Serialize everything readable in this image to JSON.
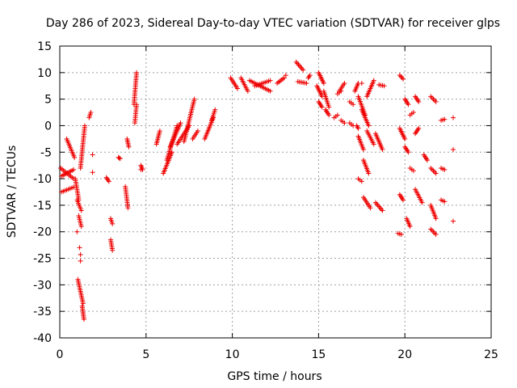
{
  "chart_data": {
    "type": "scatter",
    "title": "Day 286 of 2023, Sidereal Day-to-day VTEC variation (SDTVAR) for receiver glps",
    "xlabel": "GPS time / hours",
    "ylabel": "SDTVAR / TECUs",
    "xlim": [
      0,
      25
    ],
    "ylim": [
      -40,
      15
    ],
    "xticks": [
      "0",
      "5",
      "10",
      "15",
      "20",
      "25"
    ],
    "yticks": [
      "15",
      "10",
      "5",
      "0",
      "-5",
      "-10",
      "-15",
      "-20",
      "-25",
      "-30",
      "-35",
      "-40"
    ],
    "grid": true,
    "marker": "+",
    "color": "#ee0000",
    "series": [
      {
        "name": "SDTVAR",
        "segments": [
          {
            "x": [
              0.05,
              0.8
            ],
            "y": [
              -8.0,
              -10.0
            ]
          },
          {
            "x": [
              0.1,
              0.8
            ],
            "y": [
              -9.5,
              -8.3
            ]
          },
          {
            "x": [
              0.1,
              0.8
            ],
            "y": [
              -12.5,
              -11.6
            ]
          },
          {
            "x": [
              0.4,
              0.85
            ],
            "y": [
              -2.5,
              -6.0
            ]
          },
          {
            "x": [
              0.9,
              1.1
            ],
            "y": [
              -10.0,
              -14.0
            ]
          },
          {
            "x": [
              1.0,
              1.25
            ],
            "y": [
              -14.0,
              -16.0
            ]
          },
          {
            "x": [
              1.05,
              1.35
            ],
            "y": [
              -29.0,
              -33.5
            ]
          },
          {
            "x": [
              1.3,
              1.4
            ],
            "y": [
              -34.0,
              -36.5
            ]
          },
          {
            "x": [
              1.2,
              1.45
            ],
            "y": [
              -8.0,
              0.0
            ]
          },
          {
            "x": [
              1.1,
              1.25
            ],
            "y": [
              -17.0,
              -19.0
            ]
          },
          {
            "x": [
              1.7,
              1.8
            ],
            "y": [
              1.5,
              2.5
            ]
          },
          {
            "x": [
              2.7,
              2.85
            ],
            "y": [
              -9.8,
              -10.5
            ]
          },
          {
            "x": [
              2.95,
              3.05
            ],
            "y": [
              -17.5,
              -18.5
            ]
          },
          {
            "x": [
              2.95,
              3.05
            ],
            "y": [
              -21.5,
              -23.5
            ]
          },
          {
            "x": [
              3.4,
              3.5
            ],
            "y": [
              -6.0,
              -6.2
            ]
          },
          {
            "x": [
              3.8,
              3.95
            ],
            "y": [
              -11.5,
              -15.5
            ]
          },
          {
            "x": [
              3.9,
              4.0
            ],
            "y": [
              -2.5,
              -4.0
            ]
          },
          {
            "x": [
              4.3,
              4.45
            ],
            "y": [
              4.0,
              10.0
            ]
          },
          {
            "x": [
              4.35,
              4.45
            ],
            "y": [
              0.5,
              4.0
            ]
          },
          {
            "x": [
              4.7,
              4.8
            ],
            "y": [
              -7.5,
              -8.3
            ]
          },
          {
            "x": [
              5.6,
              5.8
            ],
            "y": [
              -3.5,
              -1.0
            ]
          },
          {
            "x": [
              6.0,
              6.5
            ],
            "y": [
              -9.0,
              -5.0
            ]
          },
          {
            "x": [
              6.2,
              6.8
            ],
            "y": [
              -6.5,
              0.0
            ]
          },
          {
            "x": [
              6.4,
              7.0
            ],
            "y": [
              -4.0,
              0.5
            ]
          },
          {
            "x": [
              6.8,
              7.5
            ],
            "y": [
              -3.5,
              0.0
            ]
          },
          {
            "x": [
              7.2,
              7.8
            ],
            "y": [
              -3.0,
              5.0
            ]
          },
          {
            "x": [
              7.7,
              8.0
            ],
            "y": [
              -2.5,
              -1.0
            ]
          },
          {
            "x": [
              8.4,
              8.9
            ],
            "y": [
              -2.5,
              1.5
            ]
          },
          {
            "x": [
              8.8,
              9.0
            ],
            "y": [
              1.0,
              3.0
            ]
          },
          {
            "x": [
              9.9,
              10.3
            ],
            "y": [
              9.0,
              7.0
            ]
          },
          {
            "x": [
              10.5,
              10.9
            ],
            "y": [
              9.0,
              6.5
            ]
          },
          {
            "x": [
              11.0,
              12.2
            ],
            "y": [
              8.5,
              6.5
            ]
          },
          {
            "x": [
              11.3,
              12.2
            ],
            "y": [
              7.5,
              8.5
            ]
          },
          {
            "x": [
              12.6,
              13.0
            ],
            "y": [
              8.0,
              9.0
            ]
          },
          {
            "x": [
              13.7,
              14.1
            ],
            "y": [
              12.0,
              10.5
            ]
          },
          {
            "x": [
              13.8,
              14.3
            ],
            "y": [
              8.3,
              8.0
            ]
          },
          {
            "x": [
              14.4,
              14.5
            ],
            "y": [
              9.0,
              9.5
            ]
          },
          {
            "x": [
              15.0,
              15.3
            ],
            "y": [
              10.0,
              8.0
            ]
          },
          {
            "x": [
              14.9,
              15.2
            ],
            "y": [
              7.5,
              5.5
            ]
          },
          {
            "x": [
              15.0,
              15.2
            ],
            "y": [
              4.5,
              3.5
            ]
          },
          {
            "x": [
              15.3,
              15.6
            ],
            "y": [
              6.5,
              3.5
            ]
          },
          {
            "x": [
              15.4,
              15.6
            ],
            "y": [
              3.0,
              2.0
            ]
          },
          {
            "x": [
              15.9,
              16.1
            ],
            "y": [
              1.5,
              2.0
            ]
          },
          {
            "x": [
              16.1,
              16.3
            ],
            "y": [
              6.0,
              6.5
            ]
          },
          {
            "x": [
              16.2,
              16.5
            ],
            "y": [
              6.5,
              8.0
            ]
          },
          {
            "x": [
              16.3,
              16.5
            ],
            "y": [
              1.0,
              0.5
            ]
          },
          {
            "x": [
              16.8,
              17.0
            ],
            "y": [
              4.5,
              4.0
            ]
          },
          {
            "x": [
              16.8,
              17.0
            ],
            "y": [
              0.5,
              0.0
            ]
          },
          {
            "x": [
              17.1,
              17.3
            ],
            "y": [
              6.5,
              8.0
            ]
          },
          {
            "x": [
              17.2,
              17.3
            ],
            "y": [
              0.0,
              -0.5
            ]
          },
          {
            "x": [
              17.3,
              17.7
            ],
            "y": [
              5.5,
              2.0
            ]
          },
          {
            "x": [
              17.5,
              17.9
            ],
            "y": [
              3.0,
              0.0
            ]
          },
          {
            "x": [
              17.3,
              17.6
            ],
            "y": [
              -2.0,
              -4.5
            ]
          },
          {
            "x": [
              17.6,
              17.9
            ],
            "y": [
              -6.5,
              -9.0
            ]
          },
          {
            "x": [
              17.3,
              17.5
            ],
            "y": [
              -10.0,
              -10.5
            ]
          },
          {
            "x": [
              17.6,
              18.0
            ],
            "y": [
              -13.5,
              -15.5
            ]
          },
          {
            "x": [
              17.8,
              18.2
            ],
            "y": [
              5.5,
              8.5
            ]
          },
          {
            "x": [
              17.8,
              18.2
            ],
            "y": [
              -1.0,
              -3.5
            ]
          },
          {
            "x": [
              18.3,
              18.7
            ],
            "y": [
              -1.5,
              -4.5
            ]
          },
          {
            "x": [
              18.3,
              18.7
            ],
            "y": [
              -14.5,
              -16.0
            ]
          },
          {
            "x": [
              18.5,
              18.8
            ],
            "y": [
              7.7,
              7.5
            ]
          },
          {
            "x": [
              19.7,
              19.9
            ],
            "y": [
              9.5,
              8.8
            ]
          },
          {
            "x": [
              19.7,
              20.0
            ],
            "y": [
              -0.5,
              -2.5
            ]
          },
          {
            "x": [
              19.7,
              19.9
            ],
            "y": [
              -13.0,
              -14.0
            ]
          },
          {
            "x": [
              19.6,
              19.8
            ],
            "y": [
              -20.3,
              -20.5
            ]
          },
          {
            "x": [
              20.0,
              20.2
            ],
            "y": [
              5.0,
              4.0
            ]
          },
          {
            "x": [
              20.0,
              20.2
            ],
            "y": [
              -4.0,
              -5.0
            ]
          },
          {
            "x": [
              20.1,
              20.3
            ],
            "y": [
              -17.5,
              -19.0
            ]
          },
          {
            "x": [
              20.3,
              20.5
            ],
            "y": [
              2.0,
              2.5
            ]
          },
          {
            "x": [
              20.3,
              20.5
            ],
            "y": [
              -8.0,
              -8.5
            ]
          },
          {
            "x": [
              20.6,
              20.8
            ],
            "y": [
              5.5,
              4.5
            ]
          },
          {
            "x": [
              20.6,
              20.8
            ],
            "y": [
              -1.5,
              -0.5
            ]
          },
          {
            "x": [
              20.6,
              21.0
            ],
            "y": [
              -12.0,
              -14.5
            ]
          },
          {
            "x": [
              21.1,
              21.3
            ],
            "y": [
              -5.5,
              -6.5
            ]
          },
          {
            "x": [
              21.5,
              21.8
            ],
            "y": [
              5.5,
              4.5
            ]
          },
          {
            "x": [
              21.5,
              21.8
            ],
            "y": [
              -8.0,
              -9.0
            ]
          },
          {
            "x": [
              21.5,
              21.8
            ],
            "y": [
              -15.0,
              -17.5
            ]
          },
          {
            "x": [
              21.5,
              21.8
            ],
            "y": [
              -19.5,
              -20.5
            ]
          },
          {
            "x": [
              22.1,
              22.3
            ],
            "y": [
              1.0,
              1.2
            ]
          },
          {
            "x": [
              22.1,
              22.3
            ],
            "y": [
              -8.0,
              -8.3
            ]
          },
          {
            "x": [
              22.1,
              22.3
            ],
            "y": [
              -14.0,
              -14.3
            ]
          }
        ],
        "points": [
          {
            "x": 1.9,
            "y": -5.5
          },
          {
            "x": 1.9,
            "y": -8.8
          },
          {
            "x": 4.7,
            "y": -8.3
          },
          {
            "x": 22.8,
            "y": 1.5
          },
          {
            "x": 22.8,
            "y": -4.5
          },
          {
            "x": 22.8,
            "y": -18.0
          },
          {
            "x": 1.15,
            "y": -23.0
          },
          {
            "x": 1.2,
            "y": -25.5
          },
          {
            "x": 1.2,
            "y": -24.3
          },
          {
            "x": 1.0,
            "y": -20.0
          },
          {
            "x": 17.5,
            "y": 8.0
          },
          {
            "x": 13.1,
            "y": 9.5
          }
        ]
      }
    ]
  }
}
